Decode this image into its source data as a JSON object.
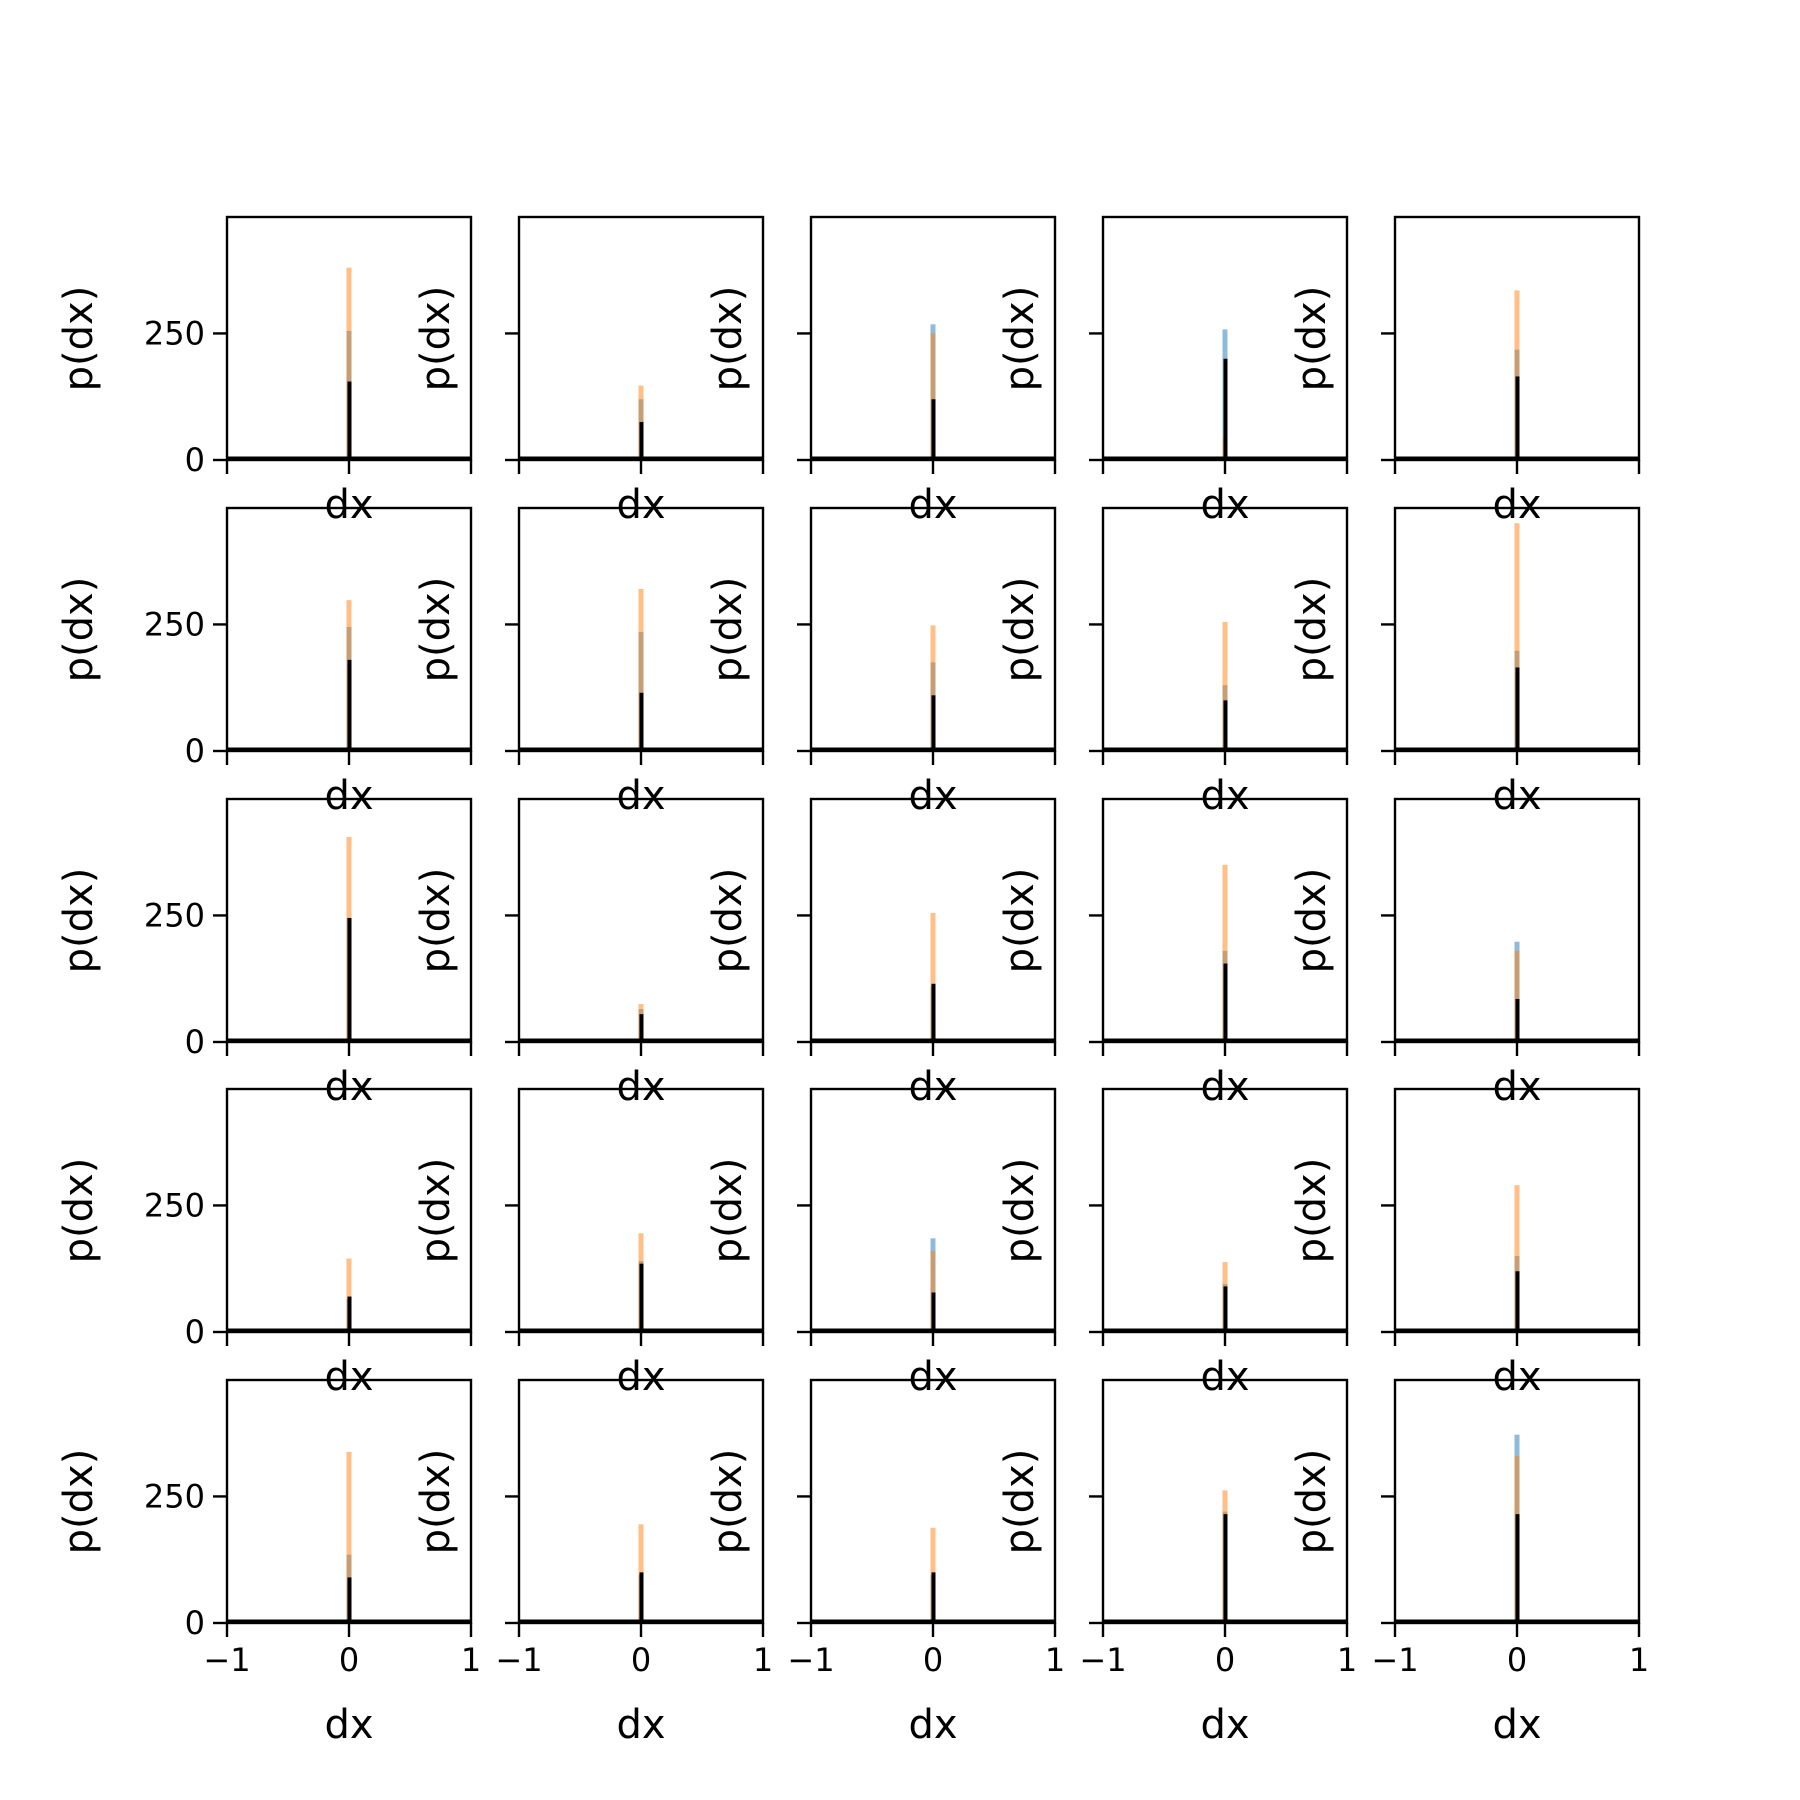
{
  "chart_data": {
    "type": "bar",
    "layout": {
      "rows": 5,
      "cols": 5,
      "sharex": true,
      "sharey": true
    },
    "xlim": [
      -1,
      1
    ],
    "ylim": [
      0,
      480
    ],
    "xticks": [
      -1,
      0,
      1
    ],
    "xtick_labels": [
      "−1",
      "0",
      "1"
    ],
    "yticks": [
      0,
      250
    ],
    "ytick_labels": [
      "0",
      "250"
    ],
    "xlabel": "dx",
    "ylabel": "p(dx)",
    "series_colors": {
      "blue": "#1f77b4",
      "orange": "#ff7f0e",
      "black": "#000000"
    },
    "series_alpha": {
      "blue": 0.5,
      "orange": 0.5,
      "black": 1.0
    },
    "peaks": [
      {
        "blue": 255,
        "orange": 380,
        "black": 155
      },
      {
        "blue": 120,
        "orange": 147,
        "black": 75
      },
      {
        "blue": 268,
        "orange": 250,
        "black": 120
      },
      {
        "blue": 258,
        "orange": 45,
        "black": 200
      },
      {
        "blue": 218,
        "orange": 335,
        "black": 165
      },
      {
        "blue": 245,
        "orange": 298,
        "black": 180
      },
      {
        "blue": 235,
        "orange": 320,
        "black": 115
      },
      {
        "blue": 175,
        "orange": 248,
        "black": 110
      },
      {
        "blue": 130,
        "orange": 255,
        "black": 100
      },
      {
        "blue": 198,
        "orange": 450,
        "black": 165
      },
      {
        "blue": 245,
        "orange": 405,
        "black": 245
      },
      {
        "blue": 65,
        "orange": 75,
        "black": 55
      },
      {
        "blue": 110,
        "orange": 255,
        "black": 115
      },
      {
        "blue": 180,
        "orange": 350,
        "black": 155
      },
      {
        "blue": 198,
        "orange": 180,
        "black": 85
      },
      {
        "blue": 65,
        "orange": 145,
        "black": 70
      },
      {
        "blue": 140,
        "orange": 195,
        "black": 135
      },
      {
        "blue": 185,
        "orange": 160,
        "black": 78
      },
      {
        "blue": 95,
        "orange": 138,
        "black": 90
      },
      {
        "blue": 150,
        "orange": 290,
        "black": 120
      },
      {
        "blue": 135,
        "orange": 338,
        "black": 90
      },
      {
        "blue": 95,
        "orange": 195,
        "black": 100
      },
      {
        "blue": 95,
        "orange": 188,
        "black": 100
      },
      {
        "blue": 220,
        "orange": 262,
        "black": 215
      },
      {
        "blue": 372,
        "orange": 330,
        "black": 215
      }
    ]
  }
}
